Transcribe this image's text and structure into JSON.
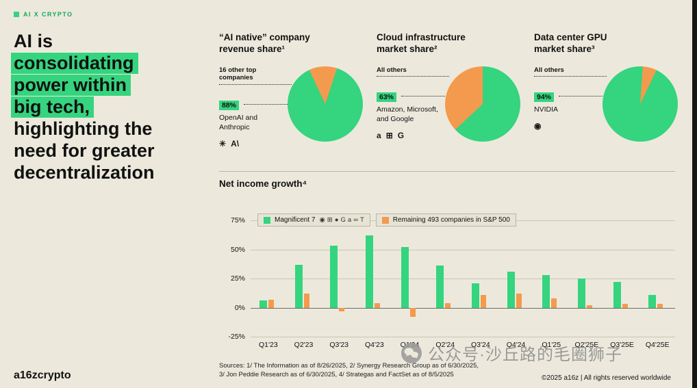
{
  "page": {
    "tag": "AI X CRYPTO",
    "headline": {
      "line1": "AI is",
      "line2": "consolidating",
      "line3": "power within",
      "line4": "big tech,",
      "line5": "highlighting the",
      "line6": "need for greater",
      "line7": "decentralization"
    },
    "logo": "a16zcrypto",
    "copyright": "©2025 a16z | All rights reserved worldwide",
    "sources_line1": "Sources: 1/ The Information as of 8/26/2025, 2/ Synergy Research Group as of 6/30/2025,",
    "sources_line2": "3/ Jon Peddie Research as of 6/30/2025, 4/ Strategas and FactSet as of 8/5/2025",
    "watermark": "公众号·沙丘路的毛圈狮子"
  },
  "colors": {
    "background": "#ECE9DC",
    "green": "#35D47F",
    "orange": "#F49A4E",
    "text": "#111111"
  },
  "pie_cards": [
    {
      "title_line1": "“AI native” company",
      "title_line2": "revenue share¹",
      "other_label": "16 other top companies",
      "pct": "88%",
      "main_label": "OpenAI and Anthropic",
      "icons": [
        {
          "name": "openai-icon",
          "glyph": "✳"
        },
        {
          "name": "anthropic-icon",
          "glyph": "A\\"
        }
      ]
    },
    {
      "title_line1": "Cloud infrastructure",
      "title_line2": "market share²",
      "other_label": "All others",
      "pct": "63%",
      "main_label": "Amazon, Microsoft, and Google",
      "icons": [
        {
          "name": "amazon-icon",
          "glyph": "a"
        },
        {
          "name": "microsoft-icon",
          "glyph": "⊞"
        },
        {
          "name": "google-icon",
          "glyph": "G"
        }
      ]
    },
    {
      "title_line1": "Data center GPU",
      "title_line2": "market share³",
      "other_label": "All others",
      "pct": "94%",
      "main_label": "NVIDIA",
      "icons": [
        {
          "name": "nvidia-icon",
          "glyph": "◉"
        }
      ]
    }
  ],
  "chart_data": [
    {
      "type": "pie",
      "title": "“AI native” company revenue share¹",
      "labels": [
        "OpenAI and Anthropic",
        "16 other top companies"
      ],
      "values": [
        88,
        12
      ],
      "unit": "%",
      "colors": [
        "#35D47F",
        "#F49A4E"
      ]
    },
    {
      "type": "pie",
      "title": "Cloud infrastructure market share²",
      "labels": [
        "Amazon, Microsoft, and Google",
        "All others"
      ],
      "values": [
        63,
        37
      ],
      "unit": "%",
      "colors": [
        "#35D47F",
        "#F49A4E"
      ]
    },
    {
      "type": "pie",
      "title": "Data center GPU market share³",
      "labels": [
        "NVIDIA",
        "All others"
      ],
      "values": [
        94,
        6
      ],
      "unit": "%",
      "colors": [
        "#35D47F",
        "#F49A4E"
      ]
    },
    {
      "type": "bar",
      "title": "Net income growth⁴",
      "categories": [
        "Q1'23",
        "Q2'23",
        "Q3'23",
        "Q4'23",
        "Q1'24",
        "Q2'24",
        "Q3'24",
        "Q4'24",
        "Q1'25",
        "Q2'25E",
        "Q3'25E",
        "Q4'25E"
      ],
      "series": [
        {
          "name": "Magnificent 7",
          "color": "#35D47F",
          "values": [
            6,
            37,
            53,
            62,
            52,
            36,
            21,
            31,
            28,
            25,
            22,
            11
          ]
        },
        {
          "name": "Remaining 493 companies in S&P 500",
          "color": "#F49A4E",
          "values": [
            7,
            12,
            -3,
            4,
            -8,
            4,
            11,
            12,
            8,
            2,
            3,
            3
          ]
        }
      ],
      "ylim": [
        -25,
        75
      ],
      "yticks": [
        "75%",
        "50%",
        "25%",
        "0%",
        "-25%"
      ],
      "ylabel": "",
      "xlabel": "",
      "grid": true,
      "legend_position": "top-left",
      "legend_icons": [
        {
          "name": "nvidia-icon",
          "glyph": "◉"
        },
        {
          "name": "microsoft-icon",
          "glyph": "⊞"
        },
        {
          "name": "apple-icon",
          "glyph": "●"
        },
        {
          "name": "google-icon",
          "glyph": "G"
        },
        {
          "name": "amazon-icon",
          "glyph": "a"
        },
        {
          "name": "meta-icon",
          "glyph": "∞"
        },
        {
          "name": "tesla-icon",
          "glyph": "T"
        }
      ]
    }
  ]
}
